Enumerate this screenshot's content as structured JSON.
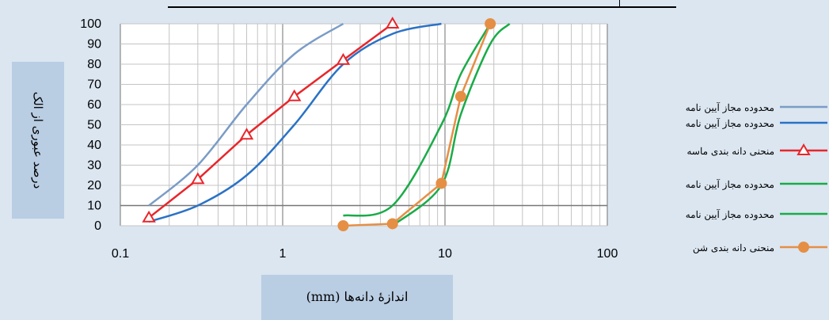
{
  "chart_data": {
    "type": "line",
    "xscale": "log",
    "xlim": [
      0.1,
      100
    ],
    "ylim": [
      0,
      100
    ],
    "xticks": [
      "0.1",
      "1",
      "10",
      "100"
    ],
    "yticks": [
      "0",
      "10",
      "20",
      "30",
      "40",
      "50",
      "60",
      "70",
      "80",
      "90",
      "100"
    ],
    "xlabel": "اندازۀ دانه‌ها (mm)",
    "ylabel": "درصد عبوری از الک",
    "grid": true,
    "legend_position": "right",
    "series": [
      {
        "name": "محدوده مجاز آیین نامه",
        "color": "#7a9cc6",
        "marker": "none",
        "x": [
          0.15,
          0.3,
          0.6,
          1.18,
          2.36
        ],
        "y": [
          10,
          30,
          60,
          85,
          100
        ]
      },
      {
        "name": "محدوده مجاز آیین نامه",
        "color": "#2a72c6",
        "marker": "none",
        "x": [
          0.15,
          0.3,
          0.6,
          1.18,
          2.36,
          4.75,
          9.5
        ],
        "y": [
          2,
          10,
          25,
          50,
          80,
          95,
          100
        ]
      },
      {
        "name": "منحنی دانه بندی ماسه",
        "color": "#e8262b",
        "marker": "triangle",
        "x": [
          0.15,
          0.3,
          0.6,
          1.18,
          2.36,
          4.75
        ],
        "y": [
          4,
          23,
          45,
          64,
          82,
          100
        ]
      },
      {
        "name": "محدوده مجاز آیین نامه",
        "color": "#1aab48",
        "marker": "none",
        "x": [
          2.36,
          4.75,
          9.5,
          12.5,
          19
        ],
        "y": [
          5,
          10,
          50,
          75,
          100
        ]
      },
      {
        "name": "محدوده مجاز آیین نامه",
        "color": "#1aab48",
        "marker": "none",
        "x": [
          4.75,
          9.5,
          12.5,
          19,
          25
        ],
        "y": [
          0,
          20,
          55,
          90,
          100
        ]
      },
      {
        "name": "منحنی دانه بندی شن",
        "color": "#e58f45",
        "marker": "circle",
        "x": [
          2.36,
          4.75,
          9.5,
          12.5,
          19
        ],
        "y": [
          0,
          1,
          21,
          64,
          100
        ]
      }
    ]
  }
}
